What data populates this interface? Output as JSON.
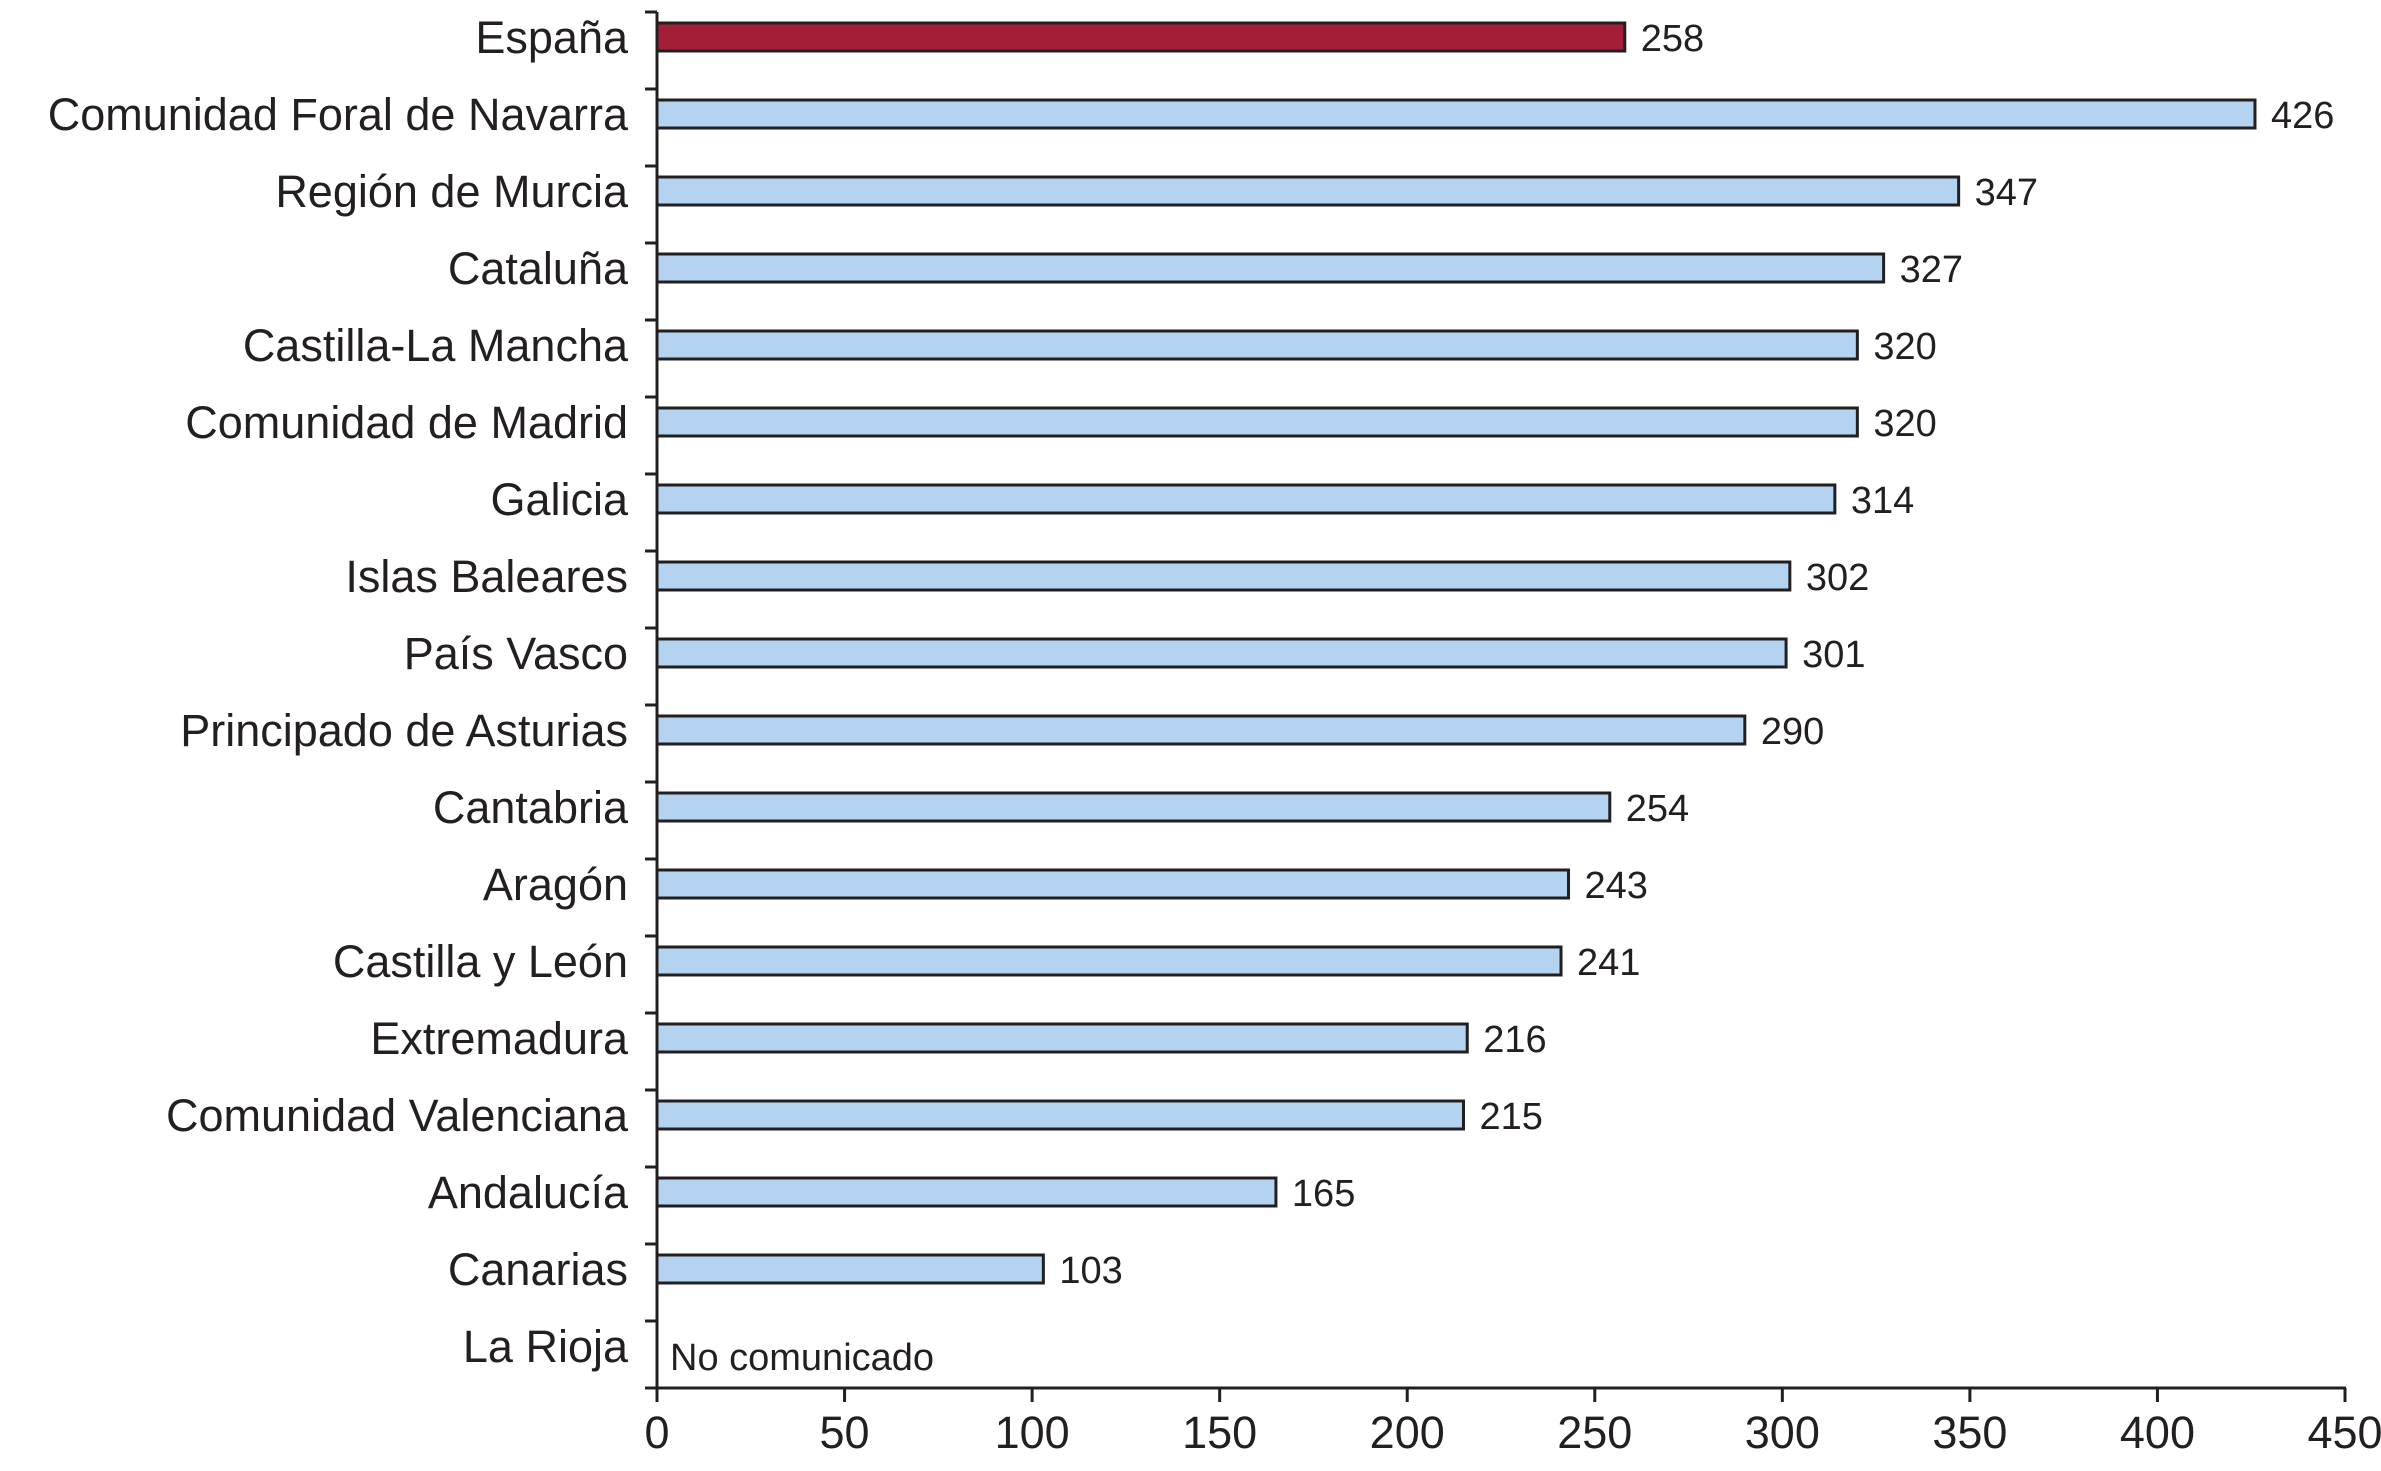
{
  "chart_data": {
    "type": "bar",
    "orientation": "horizontal",
    "categories": [
      "España",
      "Comunidad Foral de Navarra",
      "Región de Murcia",
      "Cataluña",
      "Castilla-La Mancha",
      "Comunidad de Madrid",
      "Galicia",
      "Islas Baleares",
      "País Vasco",
      "Principado de Asturias",
      "Cantabria",
      "Aragón",
      "Castilla y León",
      "Extremadura",
      "Comunidad Valenciana",
      "Andalucía",
      "Canarias",
      "La Rioja"
    ],
    "values": [
      258,
      426,
      347,
      327,
      320,
      320,
      314,
      302,
      301,
      290,
      254,
      243,
      241,
      216,
      215,
      165,
      103,
      null
    ],
    "data_labels": [
      "258",
      "426",
      "347",
      "327",
      "320",
      "320",
      "314",
      "302",
      "301",
      "290",
      "254",
      "243",
      "241",
      "216",
      "215",
      "165",
      "103",
      ""
    ],
    "missing_note": "No comunicado",
    "xticks": [
      "0",
      "50",
      "100",
      "150",
      "200",
      "250",
      "300",
      "350",
      "400",
      "450"
    ],
    "xlim": [
      0,
      450
    ],
    "highlight_index": 0,
    "grid": false,
    "legend": "none",
    "title": "",
    "xlabel": "",
    "ylabel": ""
  },
  "colors": {
    "highlight_bar": "#a21f37",
    "bar": "#b3d3f0",
    "bar_stroke": "#231f20",
    "axis": "#231f20",
    "text": "#231f20"
  }
}
